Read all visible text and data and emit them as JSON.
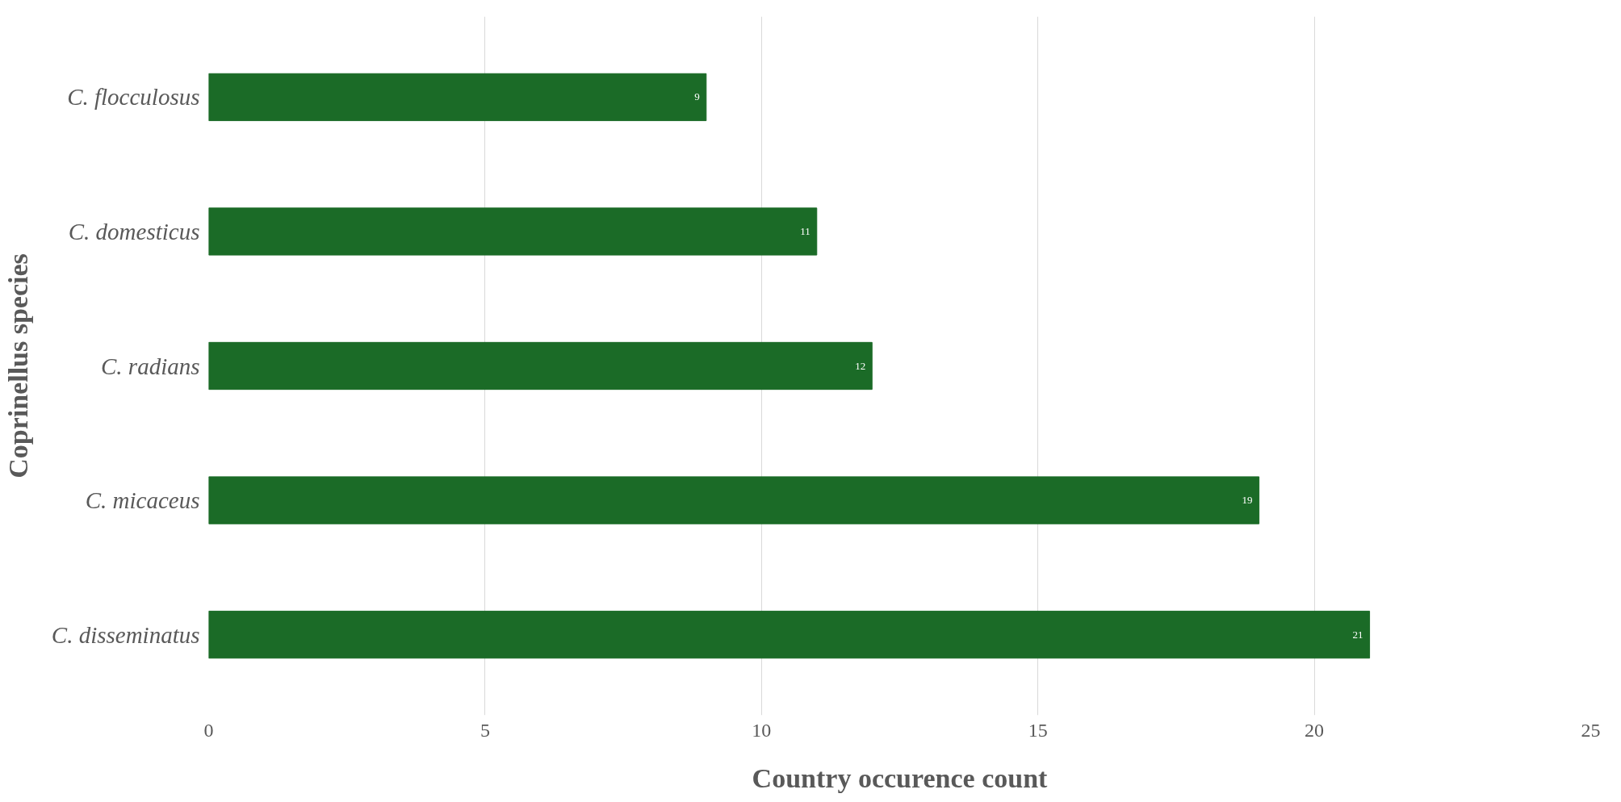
{
  "chart_data": {
    "type": "bar",
    "orientation": "horizontal",
    "xlabel": "Country occurence count",
    "ylabel": "Coprinellus species",
    "categories": [
      "C. flocculosus",
      "C. domesticus",
      "C. radians",
      "C. micaceus",
      "C. disseminatus"
    ],
    "values": [
      9,
      11,
      12,
      19,
      21
    ],
    "color": "#1b6b27",
    "xlim": [
      0,
      25
    ],
    "xticks": [
      0,
      5,
      10,
      15,
      20,
      25
    ],
    "grid": "x",
    "data_labels": true
  }
}
